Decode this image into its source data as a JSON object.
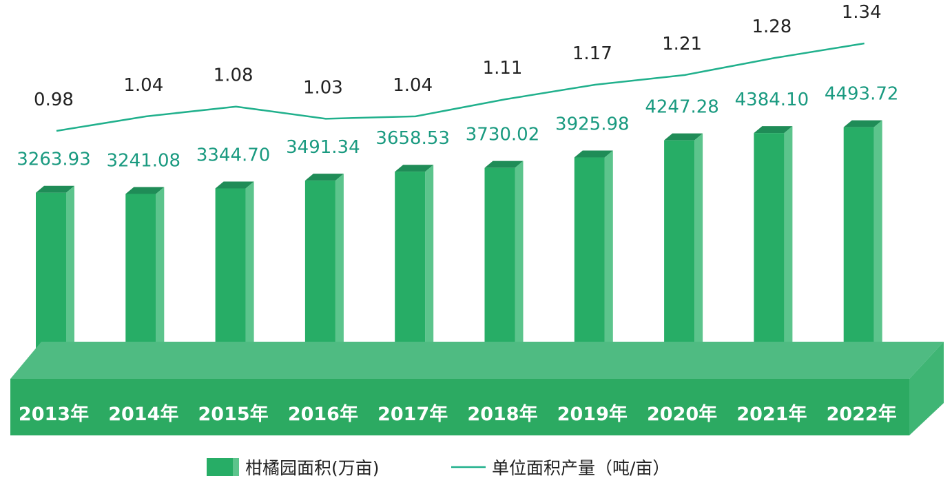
{
  "chart_data": {
    "type": "bar+line",
    "categories": [
      "2013年",
      "2014年",
      "2015年",
      "2016年",
      "2017年",
      "2018年",
      "2019年",
      "2020年",
      "2021年",
      "2022年"
    ],
    "series": [
      {
        "name": "柑橘园面积(万亩)",
        "type": "bar",
        "values": [
          3263.93,
          3241.08,
          3344.7,
          3491.34,
          3658.53,
          3730.02,
          3925.98,
          4247.28,
          4384.1,
          4493.72
        ],
        "labels": [
          "3263.93",
          "3241.08",
          "3344.70",
          "3491.34",
          "3658.53",
          "3730.02",
          "3925.98",
          "4247.28",
          "4384.10",
          "4493.72"
        ]
      },
      {
        "name": "单位面积产量（吨/亩）",
        "type": "line",
        "values": [
          0.98,
          1.04,
          1.08,
          1.03,
          1.04,
          1.11,
          1.17,
          1.21,
          1.28,
          1.34
        ],
        "labels": [
          "0.98",
          "1.04",
          "1.08",
          "1.03",
          "1.04",
          "1.11",
          "1.17",
          "1.21",
          "1.28",
          "1.34"
        ]
      }
    ],
    "legend": "bottom",
    "grid": false,
    "colors": {
      "bar_front": "#27ad66",
      "bar_top": "#1f8c57",
      "bar_side": "#5cc48c",
      "base_top": "#4fbb82",
      "base_front": "#2caa62",
      "base_side": "#3fb574",
      "line": "#20b08c",
      "bar_label": "#1a9a80"
    }
  }
}
